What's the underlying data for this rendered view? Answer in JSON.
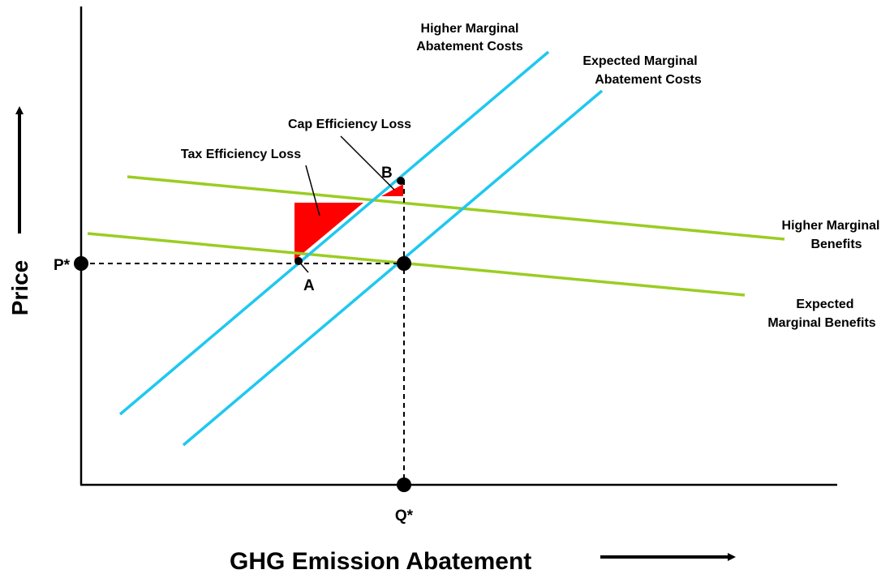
{
  "diagram": {
    "y_axis_label": "Price",
    "x_axis_label": "GHG Emission Abatement",
    "price_label": "P*",
    "quantity_label": "Q*",
    "point_a_label": "A",
    "point_b_label": "B",
    "curves": {
      "higher_mac": [
        "Higher Marginal",
        "Abatement Costs"
      ],
      "expected_mac": [
        "Expected Marginal",
        "Abatement Costs"
      ],
      "higher_mb": [
        "Higher Marginal",
        "Benefits"
      ],
      "expected_mb": [
        "Expected",
        "Marginal Benefits"
      ]
    },
    "annotations": {
      "cap_loss": "Cap Efficiency Loss",
      "tax_loss": "Tax Efficiency Loss"
    },
    "colors": {
      "cost_curves": "#1ec8ef",
      "benefit_curves": "#9acd22",
      "efficiency_loss": "#ff0000",
      "axes": "#000000"
    }
  }
}
